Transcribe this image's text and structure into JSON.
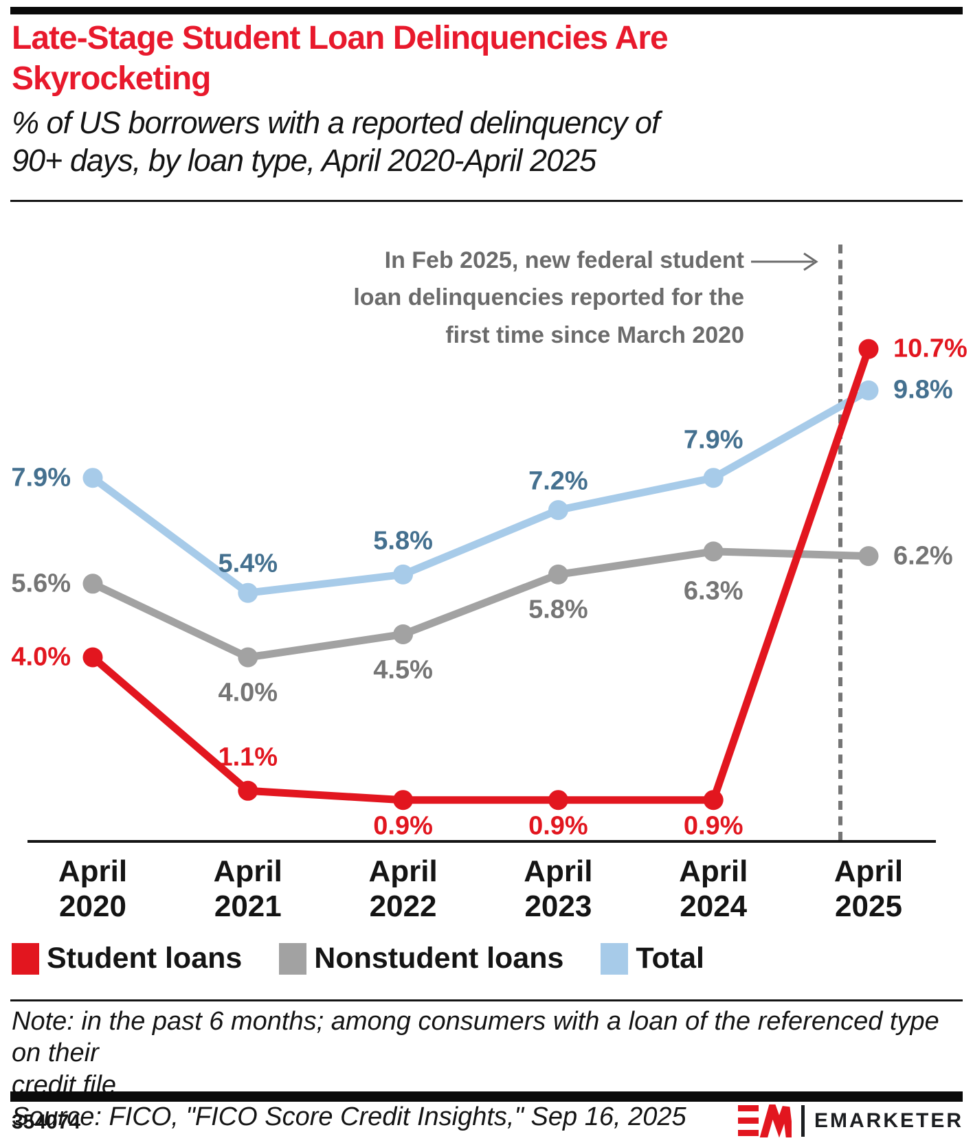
{
  "header": {
    "title_lines": [
      "Late-Stage Student Loan Delinquencies Are",
      "Skyrocketing"
    ],
    "title_color": "#e8192c",
    "subtitle_lines": [
      "% of US borrowers with a reported delinquency of",
      "90+ days, by loan type, April 2020-April 2025"
    ]
  },
  "annotation": {
    "lines": [
      "In Feb 2025, new federal student",
      "loan delinquencies reported for the",
      "first time since March 2020"
    ],
    "color": "#6b6b6b"
  },
  "chart_data": {
    "type": "line",
    "categories": [
      "April 2020",
      "April 2021",
      "April 2022",
      "April 2023",
      "April 2024",
      "April 2025"
    ],
    "series": [
      {
        "name": "Nonstudent loans",
        "color": "#a2a2a2",
        "label_color": "#757575",
        "values": [
          5.6,
          4.0,
          4.5,
          5.8,
          6.3,
          6.2
        ]
      },
      {
        "name": "Total",
        "color": "#a7cbe9",
        "label_color": "#44708f",
        "values": [
          7.9,
          5.4,
          5.8,
          7.2,
          7.9,
          9.8
        ]
      },
      {
        "name": "Student loans",
        "color": "#e2161f",
        "label_color": "#e2161f",
        "values": [
          4.0,
          1.1,
          0.9,
          0.9,
          0.9,
          10.7
        ]
      }
    ],
    "legend_order": [
      "Student loans",
      "Nonstudent loans",
      "Total"
    ],
    "ylim": [
      0,
      11.5
    ],
    "grid": false,
    "legend_position": "bottom",
    "event_line": {
      "label": "Feb 2025",
      "style": "dashed",
      "color": "#757575"
    },
    "value_suffix": "%"
  },
  "footer": {
    "note_lines": [
      "Note: in the past 6 months; among consumers with a loan of the referenced type on their",
      "credit file"
    ],
    "source": "Source: FICO, \"FICO Score Credit Insights,\" Sep 16, 2025",
    "exhibit_id": "354074",
    "brand": "EMARKETER"
  }
}
